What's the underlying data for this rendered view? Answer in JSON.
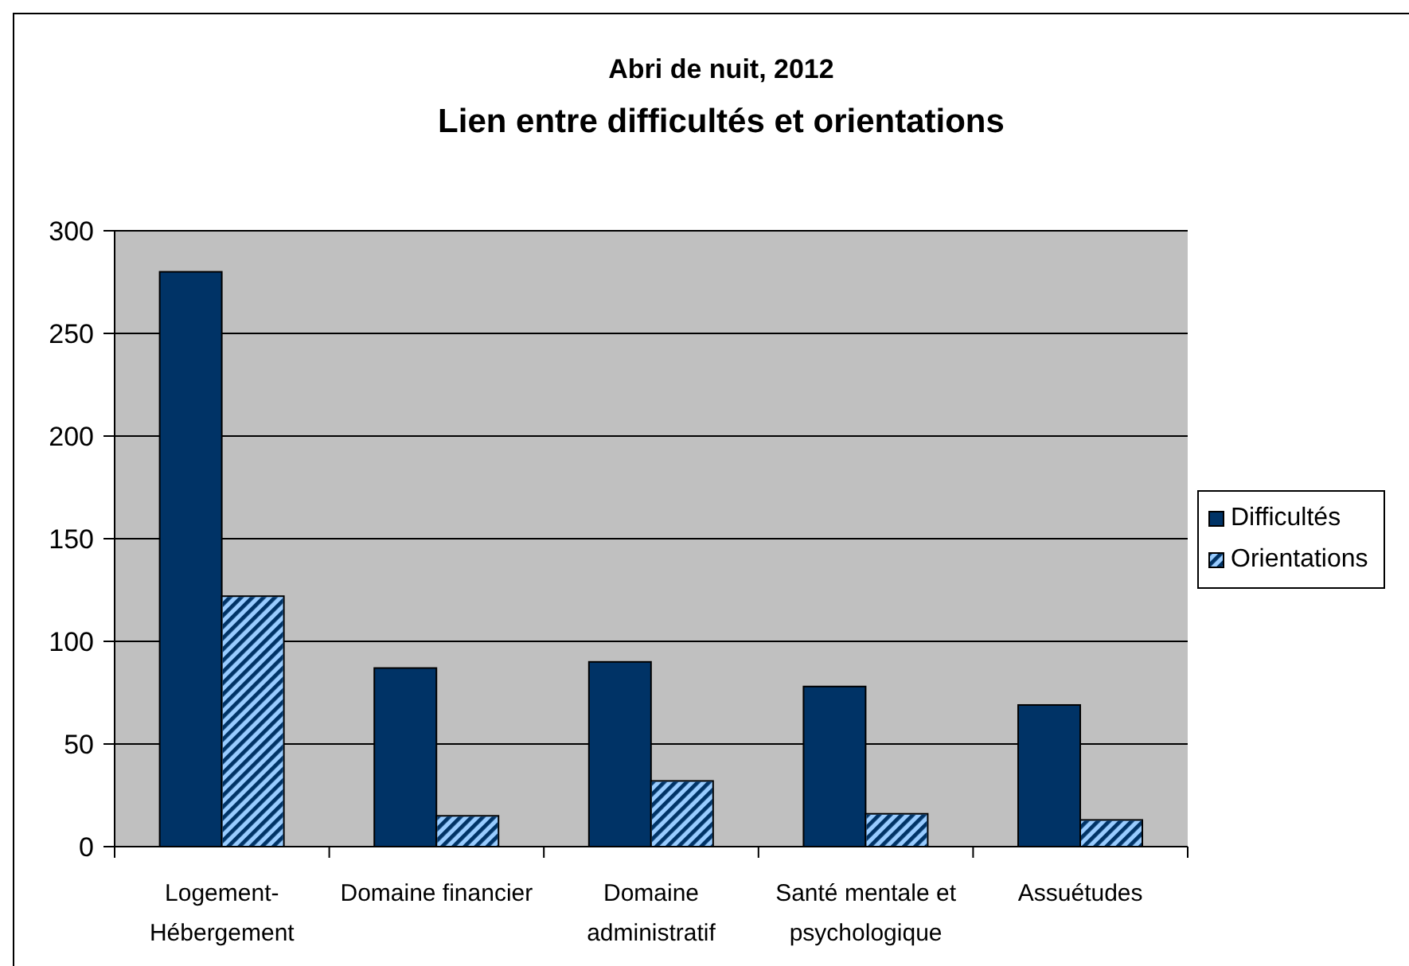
{
  "chart_data": {
    "type": "bar",
    "title": "Abri de nuit, 2012",
    "subtitle": "Lien entre difficultés et orientations",
    "categories": [
      "Logement-Hébergement",
      "Domaine financier",
      "Domaine administratif",
      "Santé mentale et psychologique",
      "Assuétudes"
    ],
    "series": [
      {
        "name": "Difficultés",
        "color": "#003366",
        "values": [
          280,
          87,
          90,
          78,
          69
        ]
      },
      {
        "name": "Orientations",
        "color": "#99ccff",
        "values": [
          122,
          15,
          32,
          16,
          13
        ]
      }
    ],
    "ylim": [
      0,
      300
    ],
    "yticks": [
      0,
      50,
      100,
      150,
      200,
      250,
      300
    ],
    "grid": "y",
    "legend": "right"
  }
}
